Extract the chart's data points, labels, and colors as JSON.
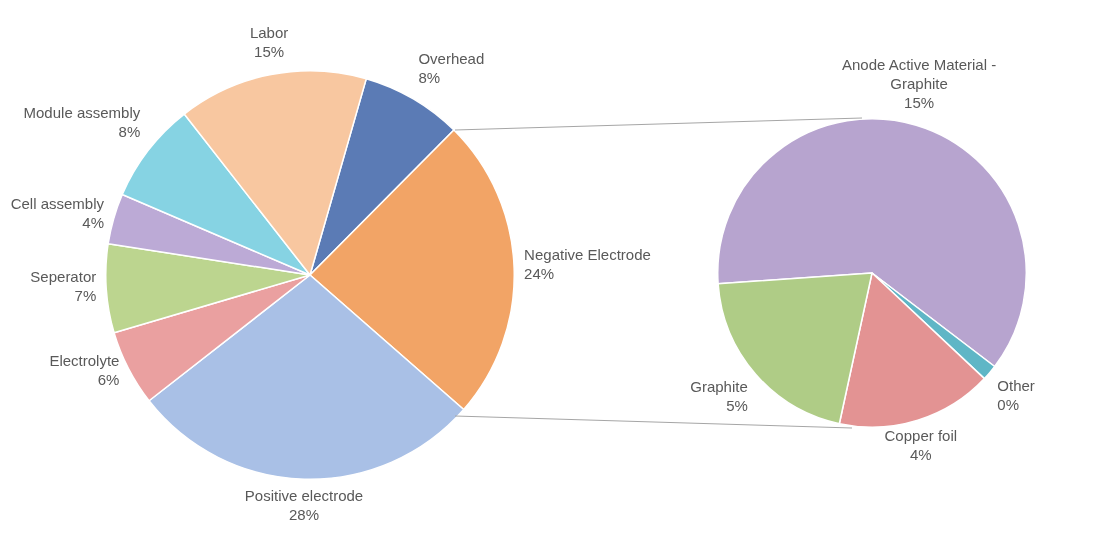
{
  "chart_data": [
    {
      "type": "pie",
      "categories": [
        "Overhead",
        "Negative Electrode",
        "Positive electrode",
        "Electrolyte",
        "Seperator",
        "Cell assembly",
        "Module assembly",
        "Labor"
      ],
      "values": [
        8,
        24,
        28,
        6,
        7,
        4,
        8,
        15
      ],
      "colors": [
        "#5b7bb5",
        "#f2a466",
        "#a9c0e6",
        "#eaa0a0",
        "#bcd58f",
        "#bcaad6",
        "#86d3e3",
        "#f8c7a0"
      ],
      "value_labels": [
        "8%",
        "24%",
        "28%",
        "6%",
        "7%",
        "4%",
        "8%",
        "15%"
      ]
    },
    {
      "type": "pie",
      "categories": [
        "Anode Active Material - Graphite",
        "Other",
        "Copper foil",
        "Graphite"
      ],
      "values": [
        15,
        0.4,
        4,
        5
      ],
      "colors": [
        "#b7a4cf",
        "#5fb6c6",
        "#e39393",
        "#afcc86"
      ],
      "value_labels": [
        "15%",
        "0%",
        "4%",
        "5%"
      ]
    }
  ]
}
